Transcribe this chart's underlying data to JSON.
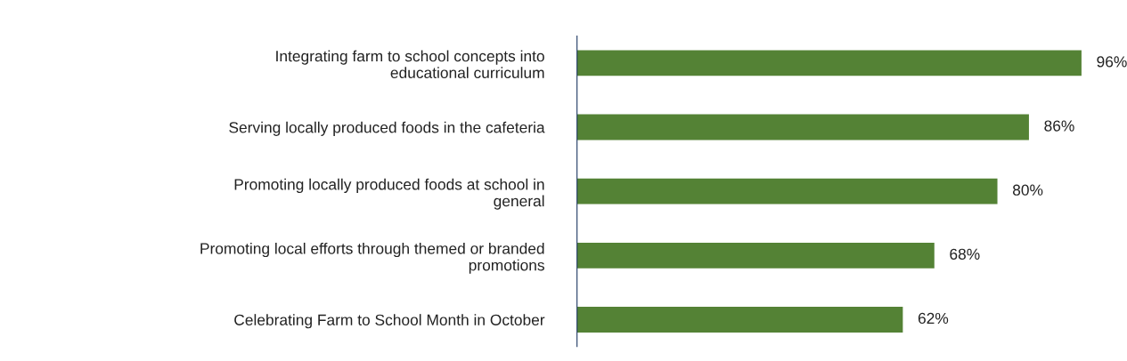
{
  "chart_data": {
    "type": "bar",
    "orientation": "horizontal",
    "categories": [
      "Integrating farm to school concepts into educational curriculum",
      "Serving locally produced foods in the cafeteria",
      "Promoting locally produced foods at school in general",
      "Promoting local efforts through themed or branded promotions",
      "Celebrating Farm to School Month in October"
    ],
    "values": [
      96,
      86,
      80,
      68,
      62
    ],
    "value_labels": [
      "96%",
      "86%",
      "80%",
      "68%",
      "62%"
    ],
    "color": "#548235",
    "grid": false,
    "legend": false
  }
}
